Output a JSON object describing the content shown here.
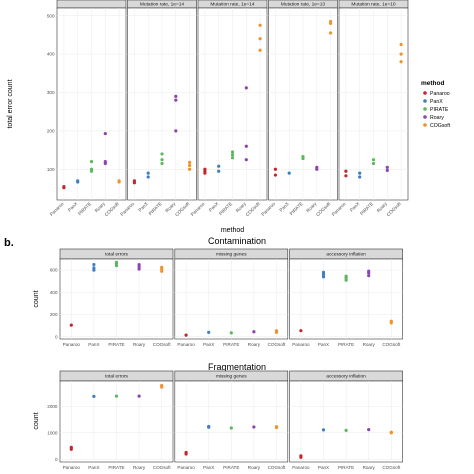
{
  "panel_b_label": "b.",
  "legend": {
    "title": "method",
    "entries": [
      "Panaroo",
      "PanX",
      "PIRATE",
      "Roary",
      "COGsoft"
    ]
  },
  "colors": {
    "Panaroo": "#c1272d",
    "PanX": "#3f7fbf",
    "PIRATE": "#5cb85c",
    "Roary": "#8e44ad",
    "COGsoft": "#f0932b"
  },
  "chart_data": [
    {
      "type": "scatter",
      "xlabel": "method",
      "ylabel": "total error count",
      "ylim": [
        20,
        520
      ],
      "yticks": [
        100,
        200,
        300,
        400,
        500
      ],
      "categories": [
        "Panaroo",
        "PanX",
        "PIRATE",
        "Roary",
        "COGsoft"
      ],
      "facets": [
        {
          "title": "",
          "series": [
            {
              "name": "Panaroo",
              "values": [
                52,
                55
              ]
            },
            {
              "name": "PanX",
              "values": [
                67,
                70
              ]
            },
            {
              "name": "PIRATE",
              "values": [
                95,
                100,
                120
              ]
            },
            {
              "name": "Roary",
              "values": [
                115,
                120,
                193
              ]
            },
            {
              "name": "COGsoft",
              "values": [
                67,
                70
              ]
            }
          ]
        },
        {
          "title": "Mutation rate, 1e=14",
          "series": [
            {
              "name": "Panaroo",
              "values": [
                65,
                70
              ]
            },
            {
              "name": "PanX",
              "values": [
                80,
                90
              ]
            },
            {
              "name": "PIRATE",
              "values": [
                115,
                125,
                140
              ]
            },
            {
              "name": "Roary",
              "values": [
                200,
                280,
                290
              ]
            },
            {
              "name": "COGsoft",
              "values": [
                100,
                110,
                118
              ]
            }
          ]
        },
        {
          "title": "Mutation rate, 1e=14",
          "series": [
            {
              "name": "Panaroo",
              "values": [
                90,
                95,
                100
              ]
            },
            {
              "name": "PanX",
              "values": [
                95,
                108
              ]
            },
            {
              "name": "PIRATE",
              "values": [
                130,
                138,
                145
              ]
            },
            {
              "name": "Roary",
              "values": [
                125,
                160,
                312
              ]
            },
            {
              "name": "COGsoft",
              "values": [
                410,
                440,
                475
              ]
            }
          ]
        },
        {
          "title": "Mutation rate, 1e=13",
          "series": [
            {
              "name": "Panaroo",
              "values": [
                85,
                100
              ]
            },
            {
              "name": "PanX",
              "values": [
                90
              ]
            },
            {
              "name": "PIRATE",
              "values": [
                128,
                133
              ]
            },
            {
              "name": "Roary",
              "values": [
                100,
                105
              ]
            },
            {
              "name": "COGsoft",
              "values": [
                455,
                480,
                485
              ]
            }
          ]
        },
        {
          "title": "Mutation rate, 1e=10",
          "series": [
            {
              "name": "Panaroo",
              "values": [
                83,
                95
              ]
            },
            {
              "name": "PanX",
              "values": [
                80,
                90
              ]
            },
            {
              "name": "PIRATE",
              "values": [
                115,
                125
              ]
            },
            {
              "name": "Roary",
              "values": [
                97,
                105
              ]
            },
            {
              "name": "COGsoft",
              "values": [
                380,
                400,
                425
              ]
            }
          ]
        }
      ]
    },
    {
      "type": "scatter",
      "title": "Contamination",
      "ylabel": "count",
      "ylim": [
        -20,
        700
      ],
      "yticks": [
        0,
        200,
        400,
        600
      ],
      "categories": [
        "Panaroo",
        "PanX",
        "PIRATE",
        "Roary",
        "COGsoft"
      ],
      "facets": [
        {
          "title": "total errors",
          "series": [
            {
              "name": "Panaroo",
              "values": [
                105
              ]
            },
            {
              "name": "PanX",
              "values": [
                600,
                620,
                650
              ]
            },
            {
              "name": "PIRATE",
              "values": [
                640,
                660,
                670
              ]
            },
            {
              "name": "Roary",
              "values": [
                610,
                630,
                650
              ]
            },
            {
              "name": "COGsoft",
              "values": [
                590,
                610,
                625
              ]
            }
          ]
        },
        {
          "title": "missing genes",
          "series": [
            {
              "name": "Panaroo",
              "values": [
                15
              ]
            },
            {
              "name": "PanX",
              "values": [
                40
              ]
            },
            {
              "name": "PIRATE",
              "values": [
                35
              ]
            },
            {
              "name": "Roary",
              "values": [
                45
              ]
            },
            {
              "name": "COGsoft",
              "values": [
                40,
                55
              ]
            }
          ]
        },
        {
          "title": "accessory inflation",
          "series": [
            {
              "name": "Panaroo",
              "values": [
                55
              ]
            },
            {
              "name": "PanX",
              "values": [
                540,
                560,
                580
              ]
            },
            {
              "name": "PIRATE",
              "values": [
                510,
                530,
                545
              ]
            },
            {
              "name": "Roary",
              "values": [
                550,
                575,
                590
              ]
            },
            {
              "name": "COGsoft",
              "values": [
                125,
                140
              ]
            }
          ]
        }
      ]
    },
    {
      "type": "scatter",
      "title": "Fragmentation",
      "ylabel": "count",
      "ylim": [
        -100,
        2950
      ],
      "yticks": [
        0,
        1000,
        2000
      ],
      "categories": [
        "Panaroo",
        "PanX",
        "PIRATE",
        "Roary",
        "COGsoft"
      ],
      "facets": [
        {
          "title": "total errors",
          "series": [
            {
              "name": "Panaroo",
              "values": [
                380,
                450
              ]
            },
            {
              "name": "PanX",
              "values": [
                2370
              ]
            },
            {
              "name": "PIRATE",
              "values": [
                2380
              ]
            },
            {
              "name": "Roary",
              "values": [
                2380
              ]
            },
            {
              "name": "COGsoft",
              "values": [
                2720,
                2780
              ]
            }
          ]
        },
        {
          "title": "missing genes",
          "series": [
            {
              "name": "Panaroo",
              "values": [
                200,
                260
              ]
            },
            {
              "name": "PanX",
              "values": [
                1210,
                1240
              ]
            },
            {
              "name": "PIRATE",
              "values": [
                1180
              ]
            },
            {
              "name": "Roary",
              "values": [
                1220
              ]
            },
            {
              "name": "COGsoft",
              "values": [
                1200,
                1230
              ]
            }
          ]
        },
        {
          "title": "accessory inflation",
          "series": [
            {
              "name": "Panaroo",
              "values": [
                80,
                130
              ]
            },
            {
              "name": "PanX",
              "values": [
                1110
              ]
            },
            {
              "name": "PIRATE",
              "values": [
                1090
              ]
            },
            {
              "name": "Roary",
              "values": [
                1120
              ]
            },
            {
              "name": "COGsoft",
              "values": [
                1000,
                1020
              ]
            }
          ]
        }
      ]
    }
  ]
}
